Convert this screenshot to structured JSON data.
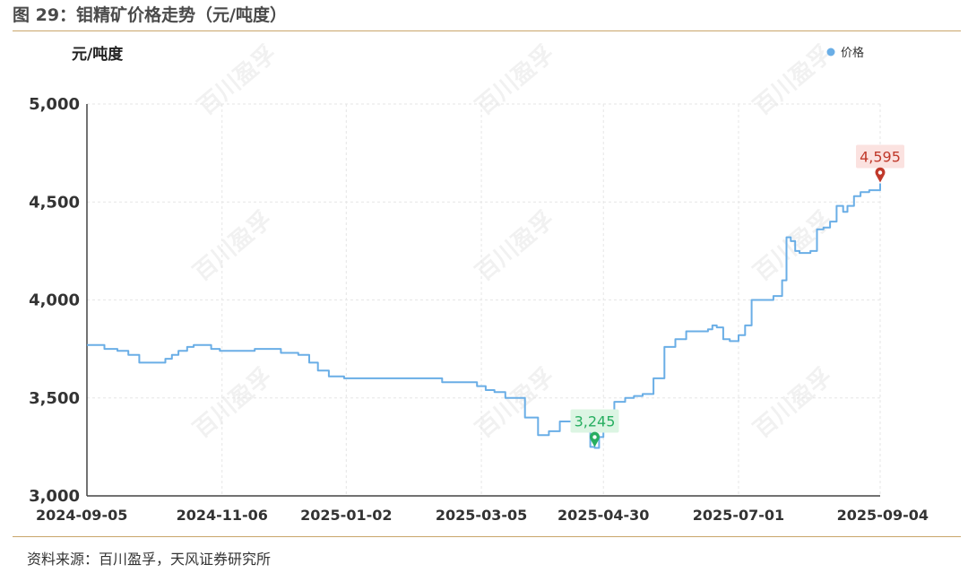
{
  "figure": {
    "title": "图 29：钼精矿价格走势（元/吨度）",
    "source": "资料来源：百川盈孚，天风证券研究所",
    "watermark": "百川盈孚"
  },
  "chart_data": {
    "type": "line",
    "unit_label": "元/吨度",
    "ylim": [
      3000,
      5000
    ],
    "y_ticks": [
      "3,000",
      "3,500",
      "4,000",
      "4,500",
      "5,000"
    ],
    "y_tick_values": [
      3000,
      3500,
      4000,
      4500,
      5000
    ],
    "x_tick_labels": [
      "2024-09-05",
      "2024-11-06",
      "2025-01-02",
      "2025-03-05",
      "2025-04-30",
      "2025-07-01",
      "2025-09-04"
    ],
    "grid": true,
    "legend_position": "top-right",
    "series": [
      {
        "name": "价格",
        "color": "#6aaee6",
        "x": [
          "2024-09-05",
          "2024-09-10",
          "2024-09-13",
          "2024-09-19",
          "2024-09-24",
          "2024-09-29",
          "2024-10-04",
          "2024-10-07",
          "2024-10-11",
          "2024-10-14",
          "2024-10-17",
          "2024-10-21",
          "2024-10-24",
          "2024-10-28",
          "2024-11-01",
          "2024-11-05",
          "2024-11-10",
          "2024-11-15",
          "2024-11-21",
          "2024-11-26",
          "2024-12-03",
          "2024-12-07",
          "2024-12-11",
          "2024-12-16",
          "2024-12-20",
          "2024-12-25",
          "2025-01-01",
          "2025-01-14",
          "2025-01-29",
          "2025-02-09",
          "2025-02-15",
          "2025-02-25",
          "2025-03-03",
          "2025-03-07",
          "2025-03-11",
          "2025-03-16",
          "2025-03-20",
          "2025-03-25",
          "2025-03-31",
          "2025-04-05",
          "2025-04-10",
          "2025-04-16",
          "2025-04-18",
          "2025-04-20",
          "2025-04-22",
          "2025-04-24",
          "2025-04-26",
          "2025-04-28",
          "2025-04-30",
          "2025-05-05",
          "2025-05-10",
          "2025-05-14",
          "2025-05-18",
          "2025-05-23",
          "2025-05-28",
          "2025-06-02",
          "2025-06-07",
          "2025-06-10",
          "2025-06-14",
          "2025-06-17",
          "2025-06-19",
          "2025-06-21",
          "2025-06-24",
          "2025-06-27",
          "2025-07-01",
          "2025-07-04",
          "2025-07-07",
          "2025-07-09",
          "2025-07-11",
          "2025-07-14",
          "2025-07-17",
          "2025-07-21",
          "2025-07-23",
          "2025-07-25",
          "2025-07-27",
          "2025-07-29",
          "2025-07-31",
          "2025-08-03",
          "2025-08-06",
          "2025-08-09",
          "2025-08-12",
          "2025-08-15",
          "2025-08-18",
          "2025-08-20",
          "2025-08-23",
          "2025-08-26",
          "2025-08-30",
          "2025-09-02",
          "2025-09-04"
        ],
        "values": [
          3770,
          3770,
          3750,
          3740,
          3720,
          3680,
          3680,
          3680,
          3700,
          3720,
          3740,
          3760,
          3770,
          3770,
          3750,
          3740,
          3740,
          3740,
          3750,
          3750,
          3730,
          3730,
          3720,
          3680,
          3640,
          3610,
          3600,
          3600,
          3600,
          3600,
          3580,
          3580,
          3560,
          3540,
          3530,
          3500,
          3500,
          3400,
          3310,
          3330,
          3380,
          3390,
          3390,
          3400,
          3400,
          3250,
          3245,
          3300,
          3330,
          3480,
          3500,
          3510,
          3520,
          3600,
          3760,
          3800,
          3840,
          3840,
          3840,
          3850,
          3870,
          3860,
          3800,
          3790,
          3820,
          3870,
          4000,
          4000,
          4000,
          4000,
          4020,
          4100,
          4320,
          4300,
          4250,
          4240,
          4240,
          4250,
          4360,
          4370,
          4400,
          4480,
          4450,
          4480,
          4530,
          4550,
          4560,
          4560,
          4595
        ]
      }
    ],
    "annotations": [
      {
        "label": "4,595",
        "x": "2025-09-04",
        "y": 4595,
        "type": "max",
        "color": "#c0392b",
        "bg": "#fbe2e0"
      },
      {
        "label": "3,245",
        "x": "2025-04-26",
        "y": 3245,
        "type": "min",
        "color": "#27ae60",
        "bg": "#dcf5e3"
      }
    ]
  }
}
